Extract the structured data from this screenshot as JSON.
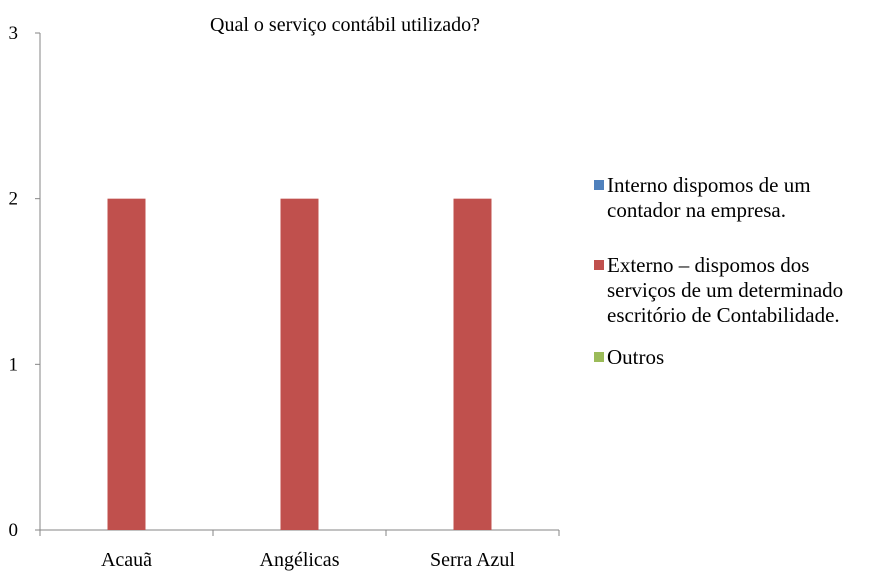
{
  "chart_data": {
    "type": "bar",
    "title": "Qual o serviço contábil utilizado?",
    "xlabel": "",
    "ylabel": "",
    "categories": [
      "Acauã",
      "Angélicas",
      "Serra Azul"
    ],
    "y_ticks": [
      "0",
      "1",
      "2",
      "3"
    ],
    "ylim": [
      0,
      3
    ],
    "grid": false,
    "legend_position": "right",
    "series": [
      {
        "name": "Interno dispomos de um contador na empresa.",
        "name_lines": [
          "Interno    dispomos de um",
          "contador na empresa."
        ],
        "color": "#4F81BD",
        "values": [
          0,
          0,
          0
        ]
      },
      {
        "name": "Externo – dispomos dos serviços de um determinado escritório de Contabilidade.",
        "name_lines": [
          "Externo – dispomos dos",
          "serviços de um determinado",
          "escritório de Contabilidade."
        ],
        "color": "#C0504D",
        "values": [
          2,
          2,
          2
        ]
      },
      {
        "name": "Outros",
        "name_lines": [
          "Outros"
        ],
        "color": "#9BBB59",
        "values": [
          0,
          0,
          0
        ]
      }
    ]
  }
}
